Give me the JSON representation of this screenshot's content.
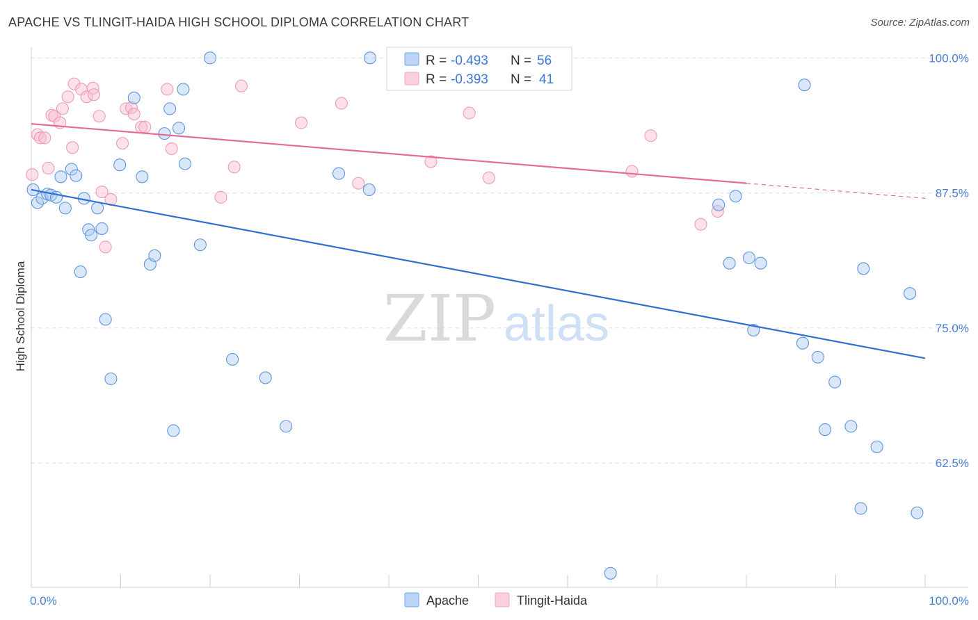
{
  "title": "APACHE VS TLINGIT-HAIDA HIGH SCHOOL DIPLOMA CORRELATION CHART",
  "source": "Source: ZipAtlas.com",
  "colors": {
    "apache": "#6fa3e8",
    "apache_line": "#2f6fd1",
    "tlingit": "#f4a3bd",
    "tlingit_line": "#e46c93",
    "axis_label": "#4a7fd4"
  },
  "legend": {
    "rows": [
      {
        "series": "Apache",
        "r_label": "R = ",
        "r_value": "-0.493",
        "n_label": "N = ",
        "n_value": "56"
      },
      {
        "series": "Tlingit-Haida",
        "r_label": "R = ",
        "r_value": "-0.393",
        "n_label": "N = ",
        "n_value": "41"
      }
    ]
  },
  "chart_data": {
    "type": "scatter",
    "title": "APACHE VS TLINGIT-HAIDA HIGH SCHOOL DIPLOMA CORRELATION CHART",
    "xlabel": "",
    "ylabel": "High School Diploma",
    "x_tick_labels": [
      "0.0%",
      "100.0%"
    ],
    "y_tick_labels": [
      "100.0%",
      "87.5%",
      "75.0%",
      "62.5%"
    ],
    "y_ticks": [
      100.0,
      87.5,
      75.0,
      62.5
    ],
    "xlim": [
      0,
      100
    ],
    "ylim": [
      51.0,
      101.5
    ],
    "grid": "horizontal dashed",
    "legend_position": "top-center",
    "series": [
      {
        "name": "Apache",
        "trend": {
          "x0": 0,
          "y0": 87.8,
          "x1": 100,
          "y1": 72.2
        },
        "points": [
          [
            0.2,
            87.8
          ],
          [
            0.7,
            86.6
          ],
          [
            1.2,
            87.0
          ],
          [
            1.8,
            87.4
          ],
          [
            2.2,
            87.3
          ],
          [
            2.8,
            87.1
          ],
          [
            3.3,
            89.0
          ],
          [
            3.8,
            86.1
          ],
          [
            4.5,
            89.7
          ],
          [
            5.0,
            89.1
          ],
          [
            5.5,
            80.2
          ],
          [
            5.9,
            87.0
          ],
          [
            6.4,
            84.1
          ],
          [
            6.7,
            83.6
          ],
          [
            7.4,
            86.1
          ],
          [
            7.9,
            84.2
          ],
          [
            8.3,
            75.8
          ],
          [
            8.9,
            70.3
          ],
          [
            9.9,
            90.1
          ],
          [
            11.5,
            96.3
          ],
          [
            12.4,
            89.0
          ],
          [
            13.3,
            80.9
          ],
          [
            13.8,
            81.7
          ],
          [
            14.9,
            93.0
          ],
          [
            15.5,
            95.3
          ],
          [
            15.9,
            65.5
          ],
          [
            16.5,
            93.5
          ],
          [
            17.0,
            97.1
          ],
          [
            17.2,
            90.2
          ],
          [
            18.9,
            82.7
          ],
          [
            20.0,
            100.0
          ],
          [
            22.5,
            72.1
          ],
          [
            26.2,
            70.4
          ],
          [
            28.5,
            65.9
          ],
          [
            34.4,
            89.3
          ],
          [
            37.8,
            87.8
          ],
          [
            37.9,
            100.0
          ],
          [
            42.7,
            99.8
          ],
          [
            64.8,
            52.3
          ],
          [
            76.9,
            86.4
          ],
          [
            78.1,
            81.0
          ],
          [
            78.8,
            87.2
          ],
          [
            80.3,
            81.5
          ],
          [
            80.8,
            74.8
          ],
          [
            81.6,
            81.0
          ],
          [
            86.3,
            73.6
          ],
          [
            86.5,
            97.5
          ],
          [
            88.0,
            72.3
          ],
          [
            88.8,
            65.6
          ],
          [
            89.9,
            70.0
          ],
          [
            91.7,
            65.9
          ],
          [
            92.8,
            58.3
          ],
          [
            93.1,
            80.5
          ],
          [
            94.6,
            64.0
          ],
          [
            98.3,
            78.2
          ],
          [
            99.1,
            57.9
          ]
        ]
      },
      {
        "name": "Tlingit-Haida",
        "trend": {
          "x0": 0,
          "y0": 93.9,
          "x1": 80,
          "y1": 88.4,
          "dashed_to": {
            "x": 100,
            "y": 87.0
          }
        },
        "points": [
          [
            0.1,
            89.2
          ],
          [
            0.7,
            92.9
          ],
          [
            1.0,
            92.6
          ],
          [
            1.5,
            92.6
          ],
          [
            1.9,
            89.8
          ],
          [
            2.3,
            94.7
          ],
          [
            2.6,
            94.6
          ],
          [
            3.2,
            94.0
          ],
          [
            3.5,
            95.3
          ],
          [
            4.1,
            96.4
          ],
          [
            4.6,
            91.7
          ],
          [
            4.8,
            97.6
          ],
          [
            5.6,
            97.1
          ],
          [
            6.2,
            96.4
          ],
          [
            6.9,
            97.2
          ],
          [
            7.0,
            96.6
          ],
          [
            7.6,
            94.6
          ],
          [
            7.9,
            87.6
          ],
          [
            8.3,
            82.5
          ],
          [
            8.9,
            86.9
          ],
          [
            10.2,
            92.1
          ],
          [
            10.6,
            95.3
          ],
          [
            11.2,
            95.4
          ],
          [
            11.5,
            94.8
          ],
          [
            12.3,
            93.6
          ],
          [
            12.7,
            93.6
          ],
          [
            15.2,
            97.1
          ],
          [
            15.7,
            91.6
          ],
          [
            21.2,
            87.1
          ],
          [
            22.7,
            89.9
          ],
          [
            23.5,
            97.4
          ],
          [
            30.2,
            94.0
          ],
          [
            34.7,
            95.8
          ],
          [
            36.6,
            88.4
          ],
          [
            44.7,
            90.4
          ],
          [
            49.0,
            94.9
          ],
          [
            51.2,
            88.9
          ],
          [
            67.2,
            89.5
          ],
          [
            69.3,
            92.8
          ],
          [
            74.9,
            84.6
          ],
          [
            76.8,
            85.8
          ]
        ]
      }
    ]
  }
}
